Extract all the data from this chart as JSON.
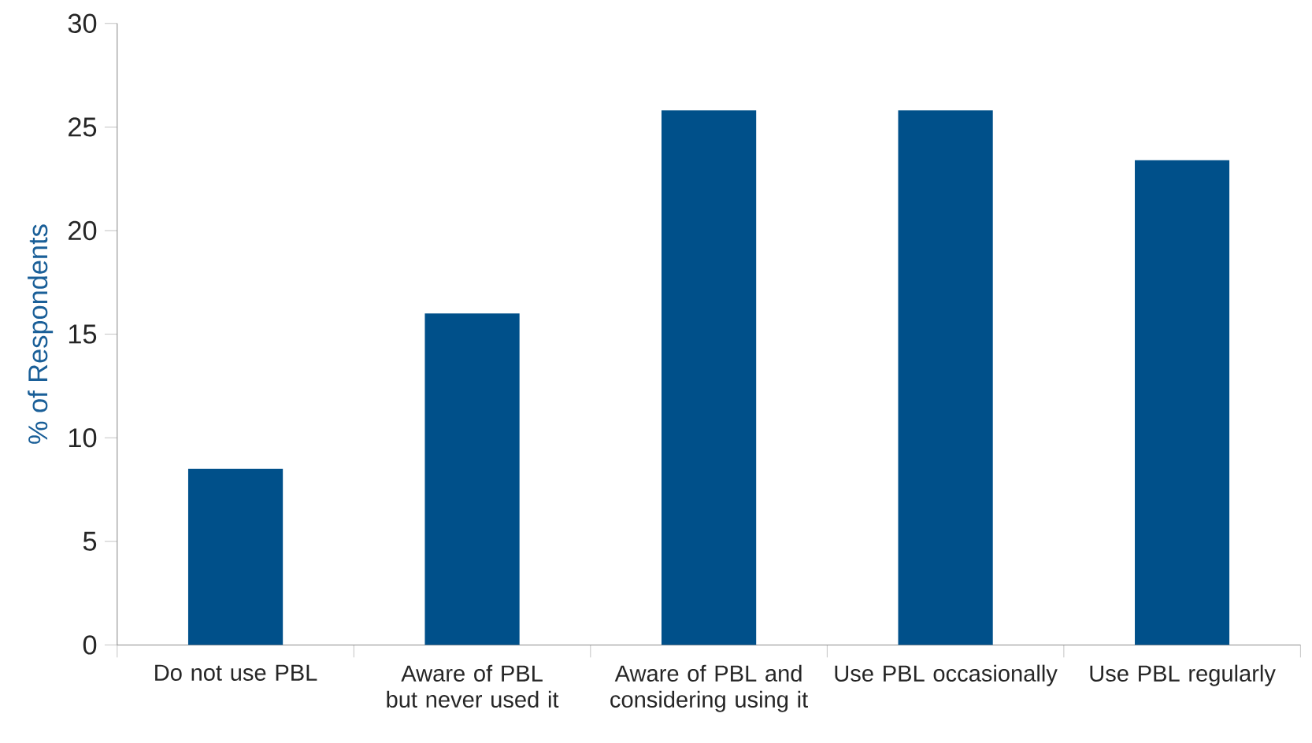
{
  "chart_data": {
    "type": "bar",
    "ylabel": "% of Respondents",
    "categories": [
      "Do not use PBL",
      "Aware of PBL but never used it",
      "Aware of PBL and considering using it",
      "Use PBL occasionally",
      "Use PBL regularly"
    ],
    "values": [
      8.5,
      16.0,
      25.8,
      25.8,
      23.4
    ],
    "color": "#00508a",
    "ylim": [
      0,
      30
    ],
    "yticks": [
      0,
      5,
      10,
      15,
      20,
      25,
      30
    ]
  }
}
